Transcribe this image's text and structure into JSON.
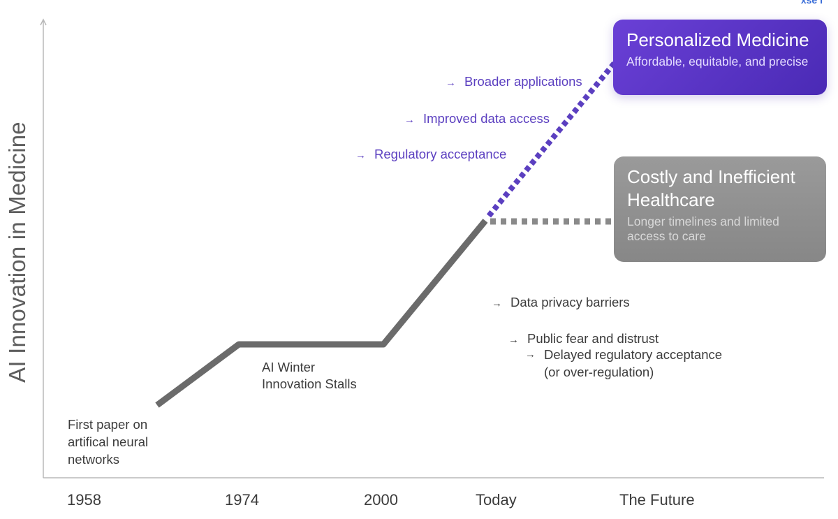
{
  "y_axis_label": "AI Innovation in Medicine",
  "x_ticks": [
    "1958",
    "1974",
    "2000",
    "Today",
    "The Future"
  ],
  "timeline_notes": {
    "first_paper": "First paper on\nartifical neural\nnetworks",
    "ai_winter_title": "AI Winter",
    "ai_winter_sub": "Innovation Stalls"
  },
  "positive_factors": [
    "Broader applications",
    "Improved data access",
    "Regulatory acceptance"
  ],
  "negative_factors": [
    "Data privacy barriers",
    "Public fear and distrust",
    "Delayed regulatory acceptance\n(or over-regulation)"
  ],
  "outcome_positive": {
    "title": "Personalized Medicine",
    "subtitle": "Affordable, equitable, and precise"
  },
  "outcome_negative": {
    "title": "Costly and Inefficient\nHealthcare",
    "subtitle": "Longer timelines and limited\naccess to care"
  },
  "arrow_glyph": "→",
  "corner_text": "xse i",
  "colors": {
    "line": "#6b6b6b",
    "accent": "#5b3fc0",
    "dotted_gray": "#8a8a8a",
    "axis": "#b5b5b5"
  }
}
